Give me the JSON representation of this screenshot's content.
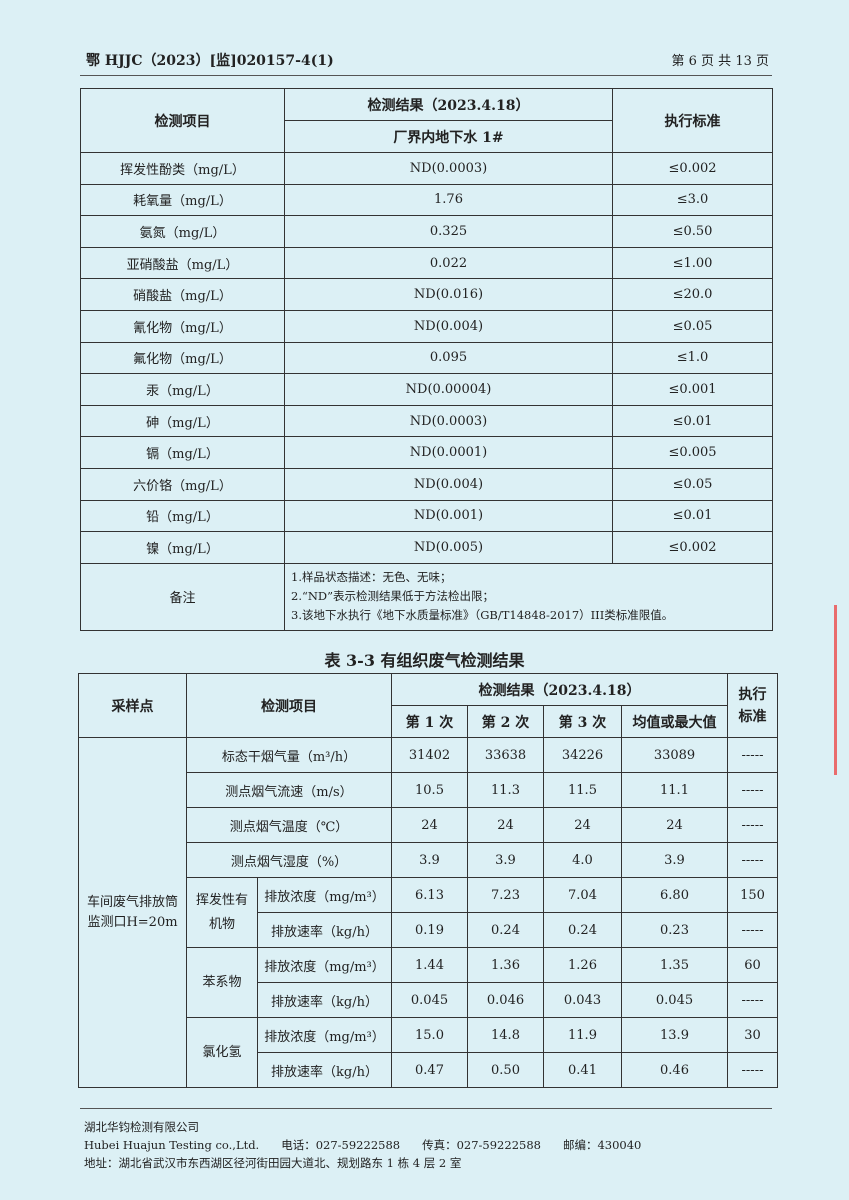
{
  "header": {
    "report_no": "鄂 HJJC（2023）[监]020157-4(1)",
    "page": "第 6 页 共 13 页"
  },
  "table1": {
    "col_item": "检测项目",
    "col_result": "检测结果（2023.4.18）",
    "col_point": "厂界内地下水 1#",
    "col_std": "执行标准",
    "rows": [
      [
        "挥发性酚类（mg/L）",
        "ND(0.0003)",
        "≤0.002"
      ],
      [
        "耗氧量（mg/L）",
        "1.76",
        "≤3.0"
      ],
      [
        "氨氮（mg/L）",
        "0.325",
        "≤0.50"
      ],
      [
        "亚硝酸盐（mg/L）",
        "0.022",
        "≤1.00"
      ],
      [
        "硝酸盐（mg/L）",
        "ND(0.016)",
        "≤20.0"
      ],
      [
        "氰化物（mg/L）",
        "ND(0.004)",
        "≤0.05"
      ],
      [
        "氟化物（mg/L）",
        "0.095",
        "≤1.0"
      ],
      [
        "汞（mg/L）",
        "ND(0.00004)",
        "≤0.001"
      ],
      [
        "砷（mg/L）",
        "ND(0.0003)",
        "≤0.01"
      ],
      [
        "镉（mg/L）",
        "ND(0.0001)",
        "≤0.005"
      ],
      [
        "六价铬（mg/L）",
        "ND(0.004)",
        "≤0.05"
      ],
      [
        "铅（mg/L）",
        "ND(0.001)",
        "≤0.01"
      ],
      [
        "镍（mg/L）",
        "ND(0.005)",
        "≤0.002"
      ]
    ],
    "notes_label": "备注",
    "notes": [
      "1.样品状态描述：无色、无味；",
      "2.“ND”表示检测结果低于方法检出限；",
      "3.该地下水执行《地下水质量标准》（GB/T14848-2017）III类标准限值。"
    ]
  },
  "table2": {
    "caption": "表 3-3 有组织废气检测结果",
    "col_site": "采样点",
    "col_item": "检测项目",
    "col_result": "检测结果（2023.4.18）",
    "col_std": "执行标准",
    "runs": [
      "第 1 次",
      "第 2 次",
      "第 3 次",
      "均值或最大值"
    ],
    "site": "车间废气排放筒监测口H=20m",
    "simple_rows": [
      {
        "item": "标态干烟气量（m³/h）",
        "v": [
          "31402",
          "33638",
          "34226",
          "33089"
        ],
        "std": "-----"
      },
      {
        "item": "测点烟气流速（m/s）",
        "v": [
          "10.5",
          "11.3",
          "11.5",
          "11.1"
        ],
        "std": "-----"
      },
      {
        "item": "测点烟气温度（℃）",
        "v": [
          "24",
          "24",
          "24",
          "24"
        ],
        "std": "-----"
      },
      {
        "item": "测点烟气湿度（%）",
        "v": [
          "3.9",
          "3.9",
          "4.0",
          "3.9"
        ],
        "std": "-----"
      }
    ],
    "groups": [
      {
        "name": "挥发性有机物",
        "rows": [
          {
            "item": "排放浓度（mg/m³）",
            "v": [
              "6.13",
              "7.23",
              "7.04",
              "6.80"
            ],
            "std": "150"
          },
          {
            "item": "排放速率（kg/h）",
            "v": [
              "0.19",
              "0.24",
              "0.24",
              "0.23"
            ],
            "std": "-----"
          }
        ]
      },
      {
        "name": "苯系物",
        "rows": [
          {
            "item": "排放浓度（mg/m³）",
            "v": [
              "1.44",
              "1.36",
              "1.26",
              "1.35"
            ],
            "std": "60"
          },
          {
            "item": "排放速率（kg/h）",
            "v": [
              "0.045",
              "0.046",
              "0.043",
              "0.045"
            ],
            "std": "-----"
          }
        ]
      },
      {
        "name": "氯化氢",
        "rows": [
          {
            "item": "排放浓度（mg/m³）",
            "v": [
              "15.0",
              "14.8",
              "11.9",
              "13.9"
            ],
            "std": "30"
          },
          {
            "item": "排放速率（kg/h）",
            "v": [
              "0.47",
              "0.50",
              "0.41",
              "0.46"
            ],
            "std": "-----"
          }
        ]
      }
    ]
  },
  "footer": {
    "company_cn": "湖北华钧检测有限公司",
    "company_en": "Hubei Huajun Testing co.,Ltd.",
    "tel": "电话：027-59222588",
    "fax": "传真：027-59222588",
    "zip": "邮编：430040",
    "address": "地址：湖北省武汉市东西湖区径河街田园大道北、规划路东 1 栋 4 层 2 室"
  }
}
